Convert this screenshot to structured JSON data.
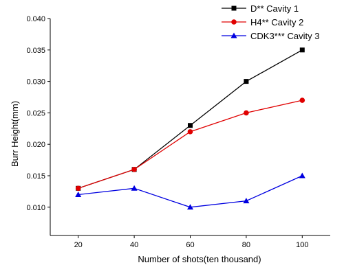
{
  "chart_data": {
    "type": "line",
    "xlabel": "Number of shots(ten thousand)",
    "ylabel": "Burr Height(mm)",
    "x": [
      20,
      40,
      60,
      80,
      100
    ],
    "x_ticks": [
      "20",
      "40",
      "60",
      "80",
      "100"
    ],
    "y_ticks": [
      "0.010",
      "0.015",
      "0.020",
      "0.025",
      "0.030",
      "0.035",
      "0.040"
    ],
    "xlim": [
      10,
      110
    ],
    "ylim": [
      0.0055,
      0.04
    ],
    "grid": false,
    "legend_position": "top-right",
    "series": [
      {
        "name": "D** Cavity 1",
        "color": "#000000",
        "marker": "square",
        "values": [
          0.013,
          0.016,
          0.023,
          0.03,
          0.035
        ]
      },
      {
        "name": "H4** Cavity 2",
        "color": "#e00000",
        "marker": "circle",
        "values": [
          0.013,
          0.016,
          0.022,
          0.025,
          0.027
        ]
      },
      {
        "name": "CDK3*** Cavity 3",
        "color": "#0000e0",
        "marker": "triangle",
        "values": [
          0.012,
          0.013,
          0.01,
          0.011,
          0.015
        ]
      }
    ]
  }
}
